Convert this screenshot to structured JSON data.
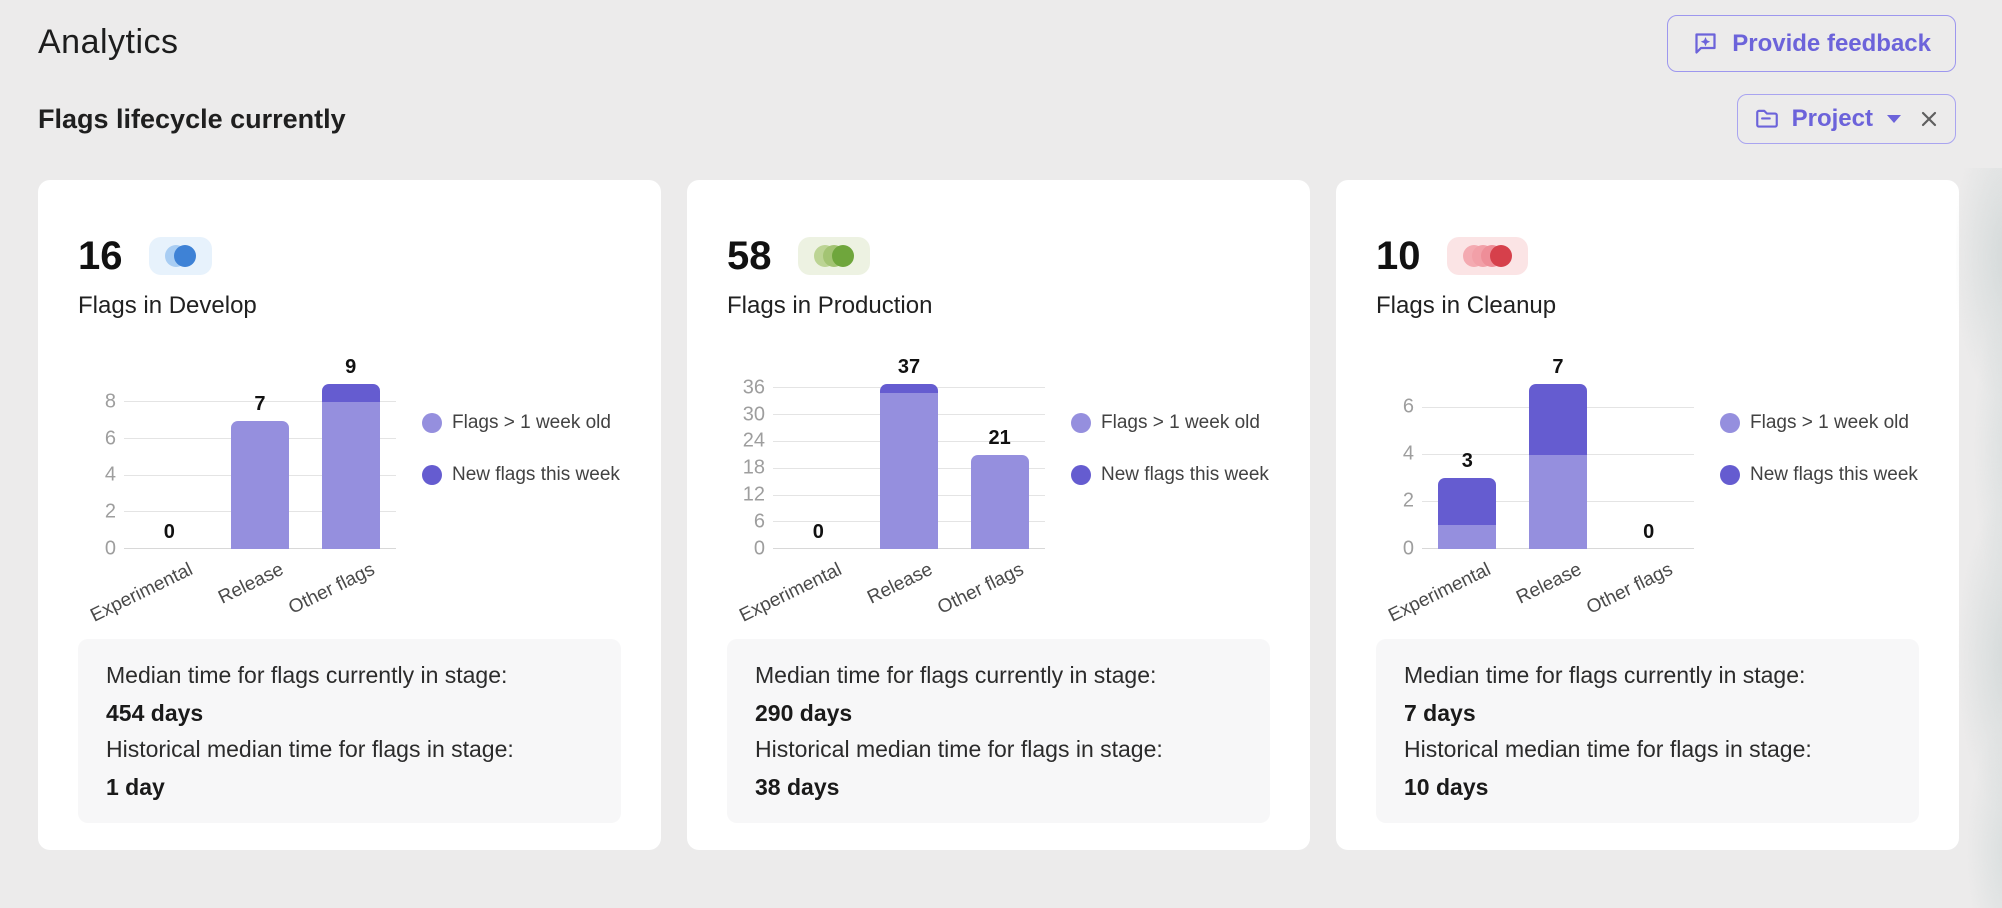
{
  "header": {
    "title": "Analytics",
    "feedback_button_label": "Provide feedback"
  },
  "section": {
    "title": "Flags lifecycle currently",
    "project_filter_label": "Project"
  },
  "legend": {
    "series1": "Flags > 1 week old",
    "series2": "New flags this week"
  },
  "colors": {
    "accent_purple": "#6C63DA",
    "bar_light_purple": "#958FDE",
    "bar_dark_purple": "#655CD0",
    "develop_blue": "#3E82D6",
    "production_green": "#6FA63C",
    "cleanup_red": "#D6404B",
    "page_background": "#ECEBEB"
  },
  "cards": [
    {
      "count": "16",
      "title": "Flags in Develop",
      "stage": "develop",
      "median_current_label": "Median time for flags currently in stage:",
      "median_current_value": "454 days",
      "median_historical_label": "Historical median time for flags in stage:",
      "median_historical_value": "1 day",
      "chart_data": {
        "type": "bar",
        "stacked": true,
        "categories": [
          "Experimental",
          "Release",
          "Other flags"
        ],
        "series": [
          {
            "name": "Flags > 1 week old",
            "values": [
              0,
              7,
              8
            ]
          },
          {
            "name": "New flags this week",
            "values": [
              0,
              0,
              1
            ]
          }
        ],
        "totals": [
          0,
          7,
          9
        ],
        "yticks": [
          0,
          2,
          4,
          6,
          8
        ],
        "ymax": 9,
        "grid": true,
        "legend_position": "right"
      }
    },
    {
      "count": "58",
      "title": "Flags in Production",
      "stage": "production",
      "median_current_label": "Median time for flags currently in stage:",
      "median_current_value": "290 days",
      "median_historical_label": "Historical median time for flags in stage:",
      "median_historical_value": "38 days",
      "chart_data": {
        "type": "bar",
        "stacked": true,
        "categories": [
          "Experimental",
          "Release",
          "Other flags"
        ],
        "series": [
          {
            "name": "Flags > 1 week old",
            "values": [
              0,
              35,
              21
            ]
          },
          {
            "name": "New flags this week",
            "values": [
              0,
              2,
              0
            ]
          }
        ],
        "totals": [
          0,
          37,
          21
        ],
        "yticks": [
          0,
          6,
          12,
          18,
          24,
          30,
          36
        ],
        "ymax": 37,
        "grid": true,
        "legend_position": "right"
      }
    },
    {
      "count": "10",
      "title": "Flags in Cleanup",
      "stage": "cleanup",
      "median_current_label": "Median time for flags currently in stage:",
      "median_current_value": "7 days",
      "median_historical_label": "Historical median time for flags in stage:",
      "median_historical_value": "10 days",
      "chart_data": {
        "type": "bar",
        "stacked": true,
        "categories": [
          "Experimental",
          "Release",
          "Other flags"
        ],
        "series": [
          {
            "name": "Flags > 1 week old",
            "values": [
              1,
              4,
              0
            ]
          },
          {
            "name": "New flags this week",
            "values": [
              2,
              3,
              0
            ]
          }
        ],
        "totals": [
          3,
          7,
          0
        ],
        "yticks": [
          0,
          2,
          4,
          6
        ],
        "ymax": 7,
        "grid": true,
        "legend_position": "right"
      }
    }
  ]
}
